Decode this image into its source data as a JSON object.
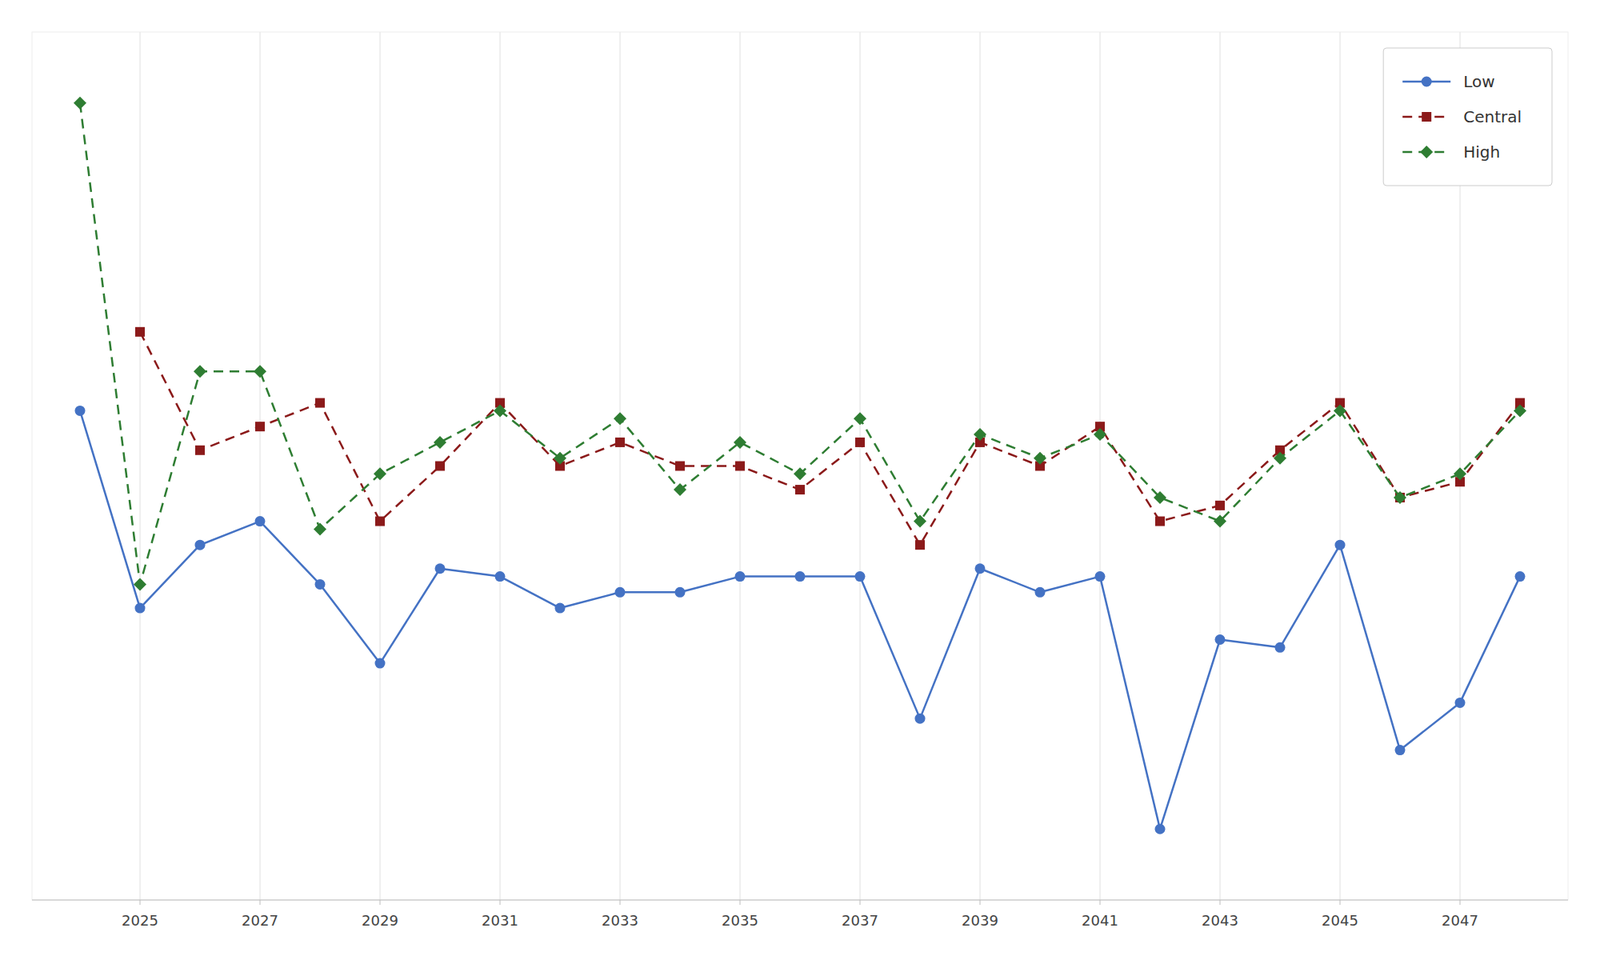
{
  "chart_data": {
    "type": "line",
    "x": [
      2024,
      2025,
      2026,
      2027,
      2028,
      2029,
      2030,
      2031,
      2032,
      2033,
      2034,
      2035,
      2036,
      2037,
      2038,
      2039,
      2040,
      2041,
      2042,
      2043,
      2044,
      2045,
      2046,
      2047,
      2048
    ],
    "series": [
      {
        "name": "Low",
        "color": "#4472c4",
        "marker": "circle",
        "line_style": "solid",
        "values": [
          57,
          32,
          40,
          43,
          35,
          25,
          37,
          36,
          32,
          34,
          34,
          36,
          36,
          36,
          18,
          37,
          34,
          36,
          4,
          28,
          27,
          40,
          14,
          20,
          36
        ]
      },
      {
        "name": "Central",
        "color": "#8b1a1a",
        "marker": "square",
        "line_style": "dashed",
        "values": [
          null,
          67,
          52,
          55,
          58,
          43,
          50,
          58,
          50,
          53,
          50,
          50,
          47,
          53,
          40,
          53,
          50,
          55,
          43,
          45,
          52,
          58,
          46,
          48,
          58
        ]
      },
      {
        "name": "High",
        "color": "#2e7d32",
        "marker": "diamond",
        "line_style": "dashed",
        "values": [
          96,
          35,
          62,
          62,
          42,
          49,
          53,
          57,
          51,
          56,
          47,
          53,
          49,
          56,
          43,
          54,
          51,
          54,
          46,
          43,
          51,
          57,
          46,
          49,
          57
        ]
      }
    ],
    "xlim": [
      2023.2,
      2048.8
    ],
    "xticks": [
      2025,
      2027,
      2029,
      2031,
      2033,
      2035,
      2037,
      2039,
      2041,
      2043,
      2045,
      2047
    ],
    "ylim": [
      -5,
      105
    ],
    "yticks": [],
    "tick_labels": "x",
    "grid": true,
    "legend": "upper right"
  }
}
